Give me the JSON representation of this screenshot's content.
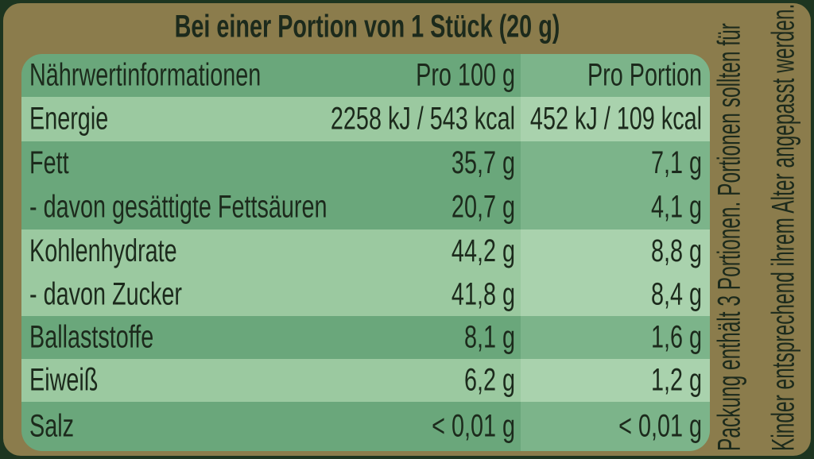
{
  "title": "Bei einer Portion von 1 Stück (20 g)",
  "table": {
    "header": [
      "Nährwertinformationen",
      "Pro 100 g",
      "Pro Portion"
    ],
    "rows": [
      [
        "Energie",
        "2258 kJ / 543 kcal",
        "452 kJ / 109 kcal"
      ],
      [
        "Fett",
        "35,7 g",
        "7,1 g"
      ],
      [
        "- davon gesättigte Fettsäuren",
        "20,7 g",
        "4,1 g"
      ],
      [
        "Kohlenhydrate",
        "44,2 g",
        "8,8 g"
      ],
      [
        "- davon Zucker",
        "41,8 g",
        "8,4 g"
      ],
      [
        "Ballaststoffe",
        "8,1 g",
        "1,6 g"
      ],
      [
        "Eiweiß",
        "6,2 g",
        "1,2 g"
      ],
      [
        "Salz",
        "< 0,01 g",
        "< 0,01 g"
      ]
    ]
  },
  "side_note": [
    "Packung enthält 3 Portionen. Portionen sollten für",
    "Kinder entsprechend ihrem Alter angepasst werden."
  ]
}
